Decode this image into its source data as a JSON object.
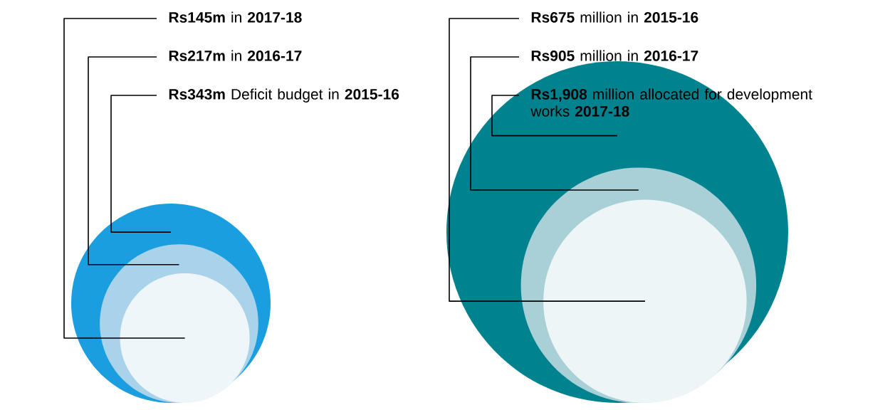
{
  "chart_data": [
    {
      "type": "other",
      "categories": [
        "in **2017-18**",
        "in **2016-17**",
        "Deficit budget in **2015-16**"
      ],
      "values": [
        145000000,
        217000000,
        343000000
      ],
      "value_labels": [
        "Rs145m",
        "Rs217m",
        "Rs343m"
      ],
      "colors": [
        "#eef6fa",
        "#a9d3ea",
        "#1a9ee0"
      ]
    },
    {
      "type": "other",
      "categories": [
        "million in **2015-16**",
        "million in **2016-17**",
        "million allocated for development works **2017-18**"
      ],
      "values": [
        675,
        905,
        1908
      ],
      "value_labels": [
        "Rs675",
        "Rs905",
        "Rs1,908"
      ],
      "colors": [
        "#eef5f6",
        "#a8d0d6",
        "#00838f"
      ]
    }
  ]
}
